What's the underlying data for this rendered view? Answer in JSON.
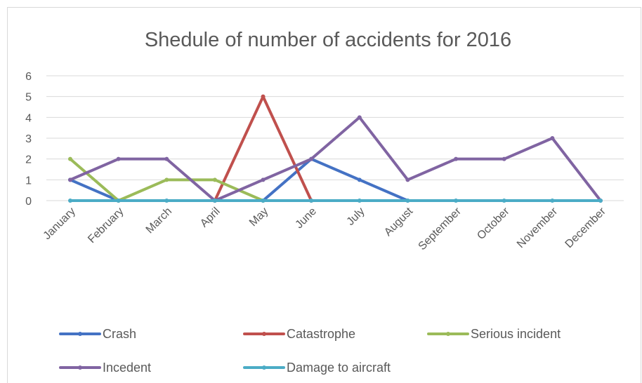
{
  "chart_data": {
    "type": "line",
    "title": "Shedule of number of accidents for 2016",
    "xlabel": "",
    "ylabel": "",
    "ylim": [
      0,
      6
    ],
    "yticks": [
      "0",
      "1",
      "2",
      "3",
      "4",
      "5",
      "6"
    ],
    "categories": [
      "January",
      "February",
      "March",
      "April",
      "May",
      "June",
      "July",
      "August",
      "September",
      "October",
      "November",
      "December"
    ],
    "grid": true,
    "legend_position": "bottom",
    "series": [
      {
        "name": "Crash",
        "color": "#4472c4",
        "values": [
          1,
          0,
          null,
          0,
          0,
          2,
          1,
          0,
          null,
          null,
          null,
          null
        ]
      },
      {
        "name": "Catastrophe",
        "color": "#c0504d",
        "values": [
          null,
          null,
          null,
          0,
          5,
          0,
          null,
          null,
          null,
          null,
          null,
          null
        ]
      },
      {
        "name": "Serious incident",
        "color": "#9bbb59",
        "values": [
          2,
          0,
          1,
          1,
          0,
          null,
          null,
          null,
          null,
          null,
          null,
          null
        ]
      },
      {
        "name": "Incedent",
        "color": "#8064a2",
        "values": [
          1,
          2,
          2,
          0,
          1,
          2,
          4,
          1,
          2,
          2,
          3,
          0
        ]
      },
      {
        "name": "Damage to aircraft",
        "color": "#4bacc6",
        "values": [
          0,
          0,
          0,
          0,
          0,
          0,
          0,
          0,
          0,
          0,
          0,
          0
        ]
      }
    ]
  }
}
